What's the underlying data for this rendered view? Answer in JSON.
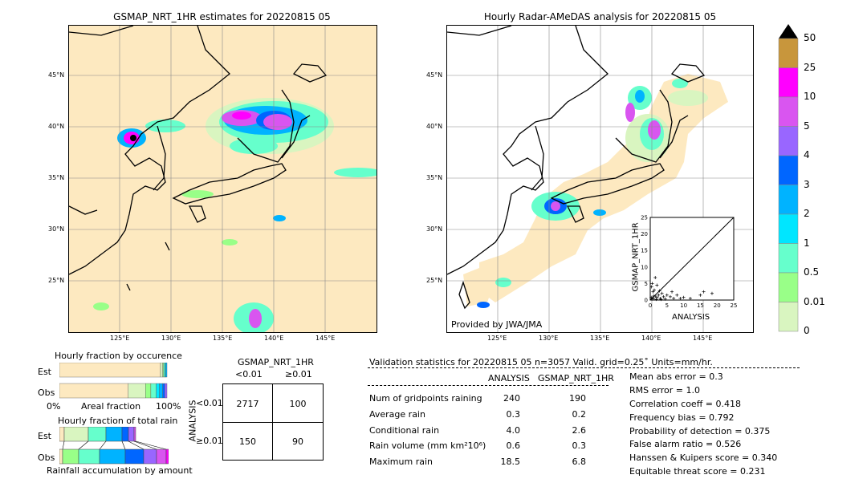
{
  "left_map": {
    "title": "GSMAP_NRT_1HR estimates for 20220815 05",
    "lat_labels": [
      "45°N",
      "40°N",
      "35°N",
      "30°N",
      "25°N"
    ],
    "lon_labels": [
      "125°E",
      "130°E",
      "135°E",
      "140°E",
      "145°E"
    ]
  },
  "right_map": {
    "title": "Hourly Radar-AMeDAS analysis for 20220815 05",
    "lat_labels": [
      "45°N",
      "40°N",
      "35°N",
      "30°N",
      "25°N"
    ],
    "lon_labels": [
      "125°E",
      "130°E",
      "135°E",
      "140°E",
      "145°E"
    ],
    "credit": "Provided by JWA/JMA"
  },
  "colorbar": {
    "labels": [
      "50",
      "25",
      "10",
      "5",
      "4",
      "3",
      "2",
      "1",
      "0.5",
      "0.01",
      "0"
    ],
    "colors": [
      "#c8963c",
      "#ff00ff",
      "#d955f0",
      "#9966ff",
      "#0066ff",
      "#00b3ff",
      "#00e6ff",
      "#66ffcc",
      "#99ff88",
      "#d9f5c0",
      "#fde9c0"
    ]
  },
  "fraction_occurrence": {
    "title": "Hourly fraction by occurence",
    "row_labels": [
      "Est",
      "Obs"
    ],
    "axis_left": "0%",
    "axis_mid": "Areal fraction",
    "axis_right": "100%"
  },
  "fraction_total": {
    "title": "Hourly fraction of total rain",
    "row_labels": [
      "Est",
      "Obs"
    ],
    "axis_caption": "Rainfall accumulation by amount"
  },
  "contingency": {
    "title": "GSMAP_NRT_1HR",
    "col_labels": [
      "<0.01",
      "≥0.01"
    ],
    "row_axis": "ANALYSIS",
    "row_labels": [
      "<0.01",
      "≥0.01"
    ],
    "cells": [
      [
        "2717",
        "100"
      ],
      [
        "150",
        "90"
      ]
    ]
  },
  "validation": {
    "header": "Validation statistics for 20220815 05  n=3057 Valid. grid=0.25˚ Units=mm/hr.",
    "col_analysis": "ANALYSIS",
    "col_gsmap": "GSMAP_NRT_1HR",
    "rows": [
      {
        "label": "Num of gridpoints raining",
        "analysis": "240",
        "gsmap": "190"
      },
      {
        "label": "Average rain",
        "analysis": "0.3",
        "gsmap": "0.2"
      },
      {
        "label": "Conditional rain",
        "analysis": "4.0",
        "gsmap": "2.6"
      },
      {
        "label": "Rain volume (mm km²10⁶)",
        "analysis": "0.6",
        "gsmap": "0.3"
      },
      {
        "label": "Maximum rain",
        "analysis": "18.5",
        "gsmap": "6.8"
      }
    ],
    "scores": [
      "Mean abs error =    0.3",
      "RMS error =    1.0",
      "Correlation coeff =  0.418",
      "Frequency bias =  0.792",
      "Probability of detection =  0.375",
      "False alarm ratio =  0.526",
      "Hanssen & Kuipers score =  0.340",
      "Equitable threat score =  0.231"
    ]
  },
  "scatter": {
    "xlabel": "ANALYSIS",
    "ylabel": "GSMAP_NRT_1HR",
    "ticks": [
      "0",
      "5",
      "10",
      "15",
      "20",
      "25"
    ]
  },
  "chart_data": [
    {
      "type": "scatter",
      "xlabel": "ANALYSIS",
      "ylabel": "GSMAP_NRT_1HR",
      "xlim": [
        0,
        25
      ],
      "ylim": [
        0,
        25
      ],
      "points": [
        [
          0.5,
          0.3
        ],
        [
          1,
          0.5
        ],
        [
          1.5,
          1.2
        ],
        [
          2,
          0.8
        ],
        [
          2.5,
          1.5
        ],
        [
          3,
          0.5
        ],
        [
          3.5,
          2
        ],
        [
          4,
          1
        ],
        [
          0.8,
          2.5
        ],
        [
          1.2,
          3
        ],
        [
          0.4,
          4
        ],
        [
          2,
          4.5
        ],
        [
          5,
          1.5
        ],
        [
          6,
          1
        ],
        [
          6.5,
          2.5
        ],
        [
          7,
          0.5
        ],
        [
          8,
          1.5
        ],
        [
          9,
          0.5
        ],
        [
          10,
          0.8
        ],
        [
          12,
          0.5
        ],
        [
          15,
          1.5
        ],
        [
          16,
          2.5
        ],
        [
          18.5,
          2
        ],
        [
          1,
          1.2
        ],
        [
          0.3,
          0.8
        ],
        [
          1.8,
          0.2
        ],
        [
          2.8,
          2.8
        ],
        [
          3.2,
          0.2
        ],
        [
          4.5,
          0.3
        ],
        [
          0.6,
          5
        ],
        [
          1.5,
          6.8
        ]
      ]
    },
    {
      "type": "table",
      "title": "Validation statistics",
      "columns": [
        "ANALYSIS",
        "GSMAP_NRT_1HR"
      ],
      "rows": [
        [
          "Num of gridpoints raining",
          240,
          190
        ],
        [
          "Average rain",
          0.3,
          0.2
        ],
        [
          "Conditional rain",
          4.0,
          2.6
        ],
        [
          "Rain volume (mm km²10⁶)",
          0.6,
          0.3
        ],
        [
          "Maximum rain",
          18.5,
          6.8
        ]
      ]
    },
    {
      "type": "bar",
      "title": "Hourly fraction by occurence",
      "categories": [
        "Est",
        "Obs"
      ],
      "series": [
        {
          "values": [
            0.94,
            0.64
          ]
        },
        {
          "values": [
            0.02,
            0.16
          ]
        },
        {
          "values": [
            0.01,
            0.05
          ]
        },
        {
          "values": [
            0.01,
            0.05
          ]
        },
        {
          "values": [
            0.01,
            0.03
          ]
        },
        {
          "values": [
            0.01,
            0.03
          ]
        },
        {
          "values": [
            0.0,
            0.02
          ]
        },
        {
          "values": [
            0.0,
            0.02
          ]
        }
      ]
    }
  ]
}
